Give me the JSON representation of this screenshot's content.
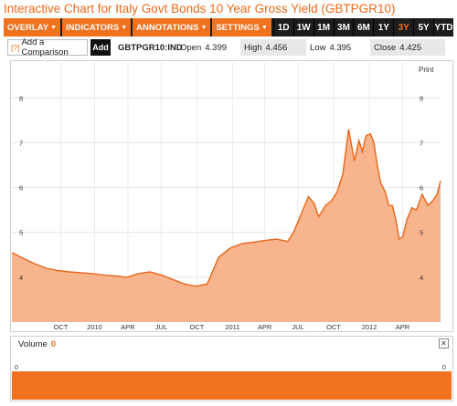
{
  "title": "Interactive Chart for Italy Govt Bonds 10 Year Gross Yield (GBTPGR10)",
  "toolbar": {
    "menus": [
      {
        "label": "OVERLAY",
        "caret": "▼"
      },
      {
        "label": "INDICATORS",
        "caret": "▼"
      },
      {
        "label": "ANNOTATIONS",
        "caret": "▼"
      },
      {
        "label": "SETTINGS",
        "caret": "▼"
      }
    ],
    "ranges": [
      "1D",
      "1W",
      "1M",
      "3M",
      "6M",
      "1Y",
      "3Y",
      "5Y",
      "YTD"
    ],
    "active_range": "3Y"
  },
  "quote": {
    "compare_help": "[?]",
    "compare_label": "Add a Comparison",
    "add_label": "Add",
    "ticker": "GBTPGR10:IND",
    "open_label": "Open",
    "open_value": "4.399",
    "high_label": "High",
    "high_value": "4.456",
    "low_label": "Low",
    "low_value": "4.395",
    "close_label": "Close",
    "close_value": "4.425"
  },
  "colors": {
    "accent": "#f0711e",
    "title": "#ee6a1a",
    "area_fill": "#f8b48c",
    "line": "#e8651c",
    "toolbar_bg": "#1d1d1d"
  },
  "chart_data": {
    "type": "area",
    "print_label": "Print",
    "y_ticks": [
      4,
      5,
      6,
      7,
      8
    ],
    "ylim": [
      3.0,
      8.8
    ],
    "x_ticks": [
      "OCT",
      "2010",
      "APR",
      "JUL",
      "OCT",
      "2011",
      "APR",
      "JUL",
      "OCT",
      "2012",
      "APR"
    ],
    "x_tick_pos": [
      2.75,
      5.7,
      8.6,
      11.5,
      14.6,
      17.7,
      20.5,
      23.4,
      26.5,
      29.6,
      32.5
    ],
    "x_domain": [
      -1.5,
      35.8
    ],
    "grid": true,
    "series": [
      {
        "x": [
          -1.5,
          -0.5,
          0.5,
          1.5,
          2.5,
          3.5,
          4.5,
          5.5,
          6.5,
          7.5,
          8.5,
          9.5,
          10.5,
          11.5,
          12.5,
          13.5,
          14.5,
          15.5,
          16.5,
          17.5,
          18.5,
          19.5,
          20.5,
          21.5,
          22.5,
          23.0,
          23.5,
          24.3,
          24.8,
          25.2,
          25.8,
          26.3,
          26.8,
          27.3,
          27.8,
          28.3,
          28.7,
          29.0,
          29.3,
          29.7,
          30.0,
          30.3,
          30.6,
          31.0,
          31.3,
          31.6,
          31.9,
          32.2,
          32.5,
          32.9,
          33.3,
          33.7,
          34.2,
          34.7,
          35.1,
          35.5,
          35.8
        ],
        "y": [
          4.55,
          4.42,
          4.3,
          4.2,
          4.15,
          4.12,
          4.1,
          4.08,
          4.05,
          4.03,
          4.0,
          4.08,
          4.12,
          4.05,
          3.95,
          3.85,
          3.8,
          3.85,
          4.45,
          4.65,
          4.75,
          4.78,
          4.82,
          4.85,
          4.8,
          5.0,
          5.3,
          5.8,
          5.65,
          5.35,
          5.6,
          5.7,
          5.9,
          6.3,
          7.3,
          6.6,
          7.05,
          6.8,
          7.15,
          7.2,
          7.0,
          6.5,
          6.1,
          5.9,
          5.6,
          5.6,
          5.3,
          4.85,
          4.9,
          5.3,
          5.55,
          5.5,
          5.85,
          5.6,
          5.7,
          5.85,
          6.15
        ]
      }
    ]
  },
  "volume": {
    "label": "Volume",
    "value": "0",
    "zero_tick": "0",
    "close_symbol": "✕"
  }
}
